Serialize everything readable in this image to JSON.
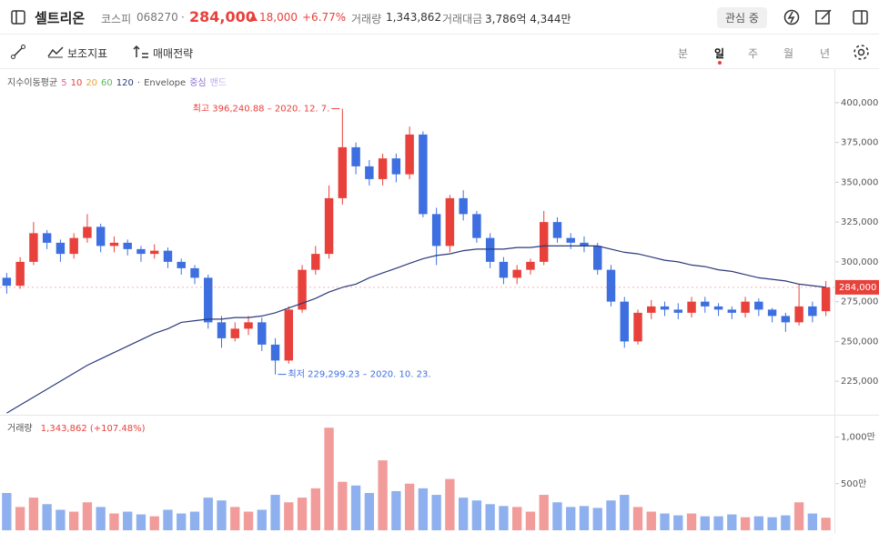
{
  "header": {
    "name": "셀트리온",
    "market": "코스피",
    "code": "068270",
    "price": "284,000",
    "change": "18,000",
    "change_pct": "+6.77%",
    "volume_label": "거래량",
    "volume": "1,343,862",
    "amount_label": "거래대금",
    "amount": "3,786억 4,344만",
    "watch_button": "관심 중"
  },
  "toolbar": {
    "indicator": "보조지표",
    "strategy": "매매전략",
    "periods": [
      "분",
      "일",
      "주",
      "월",
      "년"
    ],
    "selected_period": 1
  },
  "chart_data": {
    "type": "candlestick",
    "legend": {
      "title": "지수이동평균",
      "items": [
        {
          "label": "5",
          "color": "#e0619c"
        },
        {
          "label": "10",
          "color": "#e8413b"
        },
        {
          "label": "20",
          "color": "#f0a030"
        },
        {
          "label": "60",
          "color": "#5cb85c"
        },
        {
          "label": "120",
          "color": "#2c3a7a"
        }
      ],
      "envelope": {
        "title": "Envelope",
        "items": [
          {
            "label": "중심",
            "color": "#8a6fd0"
          },
          {
            "label": "밴드",
            "color": "#b9a8e8"
          }
        ]
      }
    },
    "up_color": "#e8413b",
    "down_color": "#3d6fe0",
    "open": [
      290000,
      285000,
      300000,
      318000,
      312000,
      305000,
      315000,
      322000,
      310000,
      312000,
      308000,
      305000,
      307000,
      300000,
      296000,
      290000,
      262000,
      252000,
      258000,
      262000,
      248000,
      238000,
      270000,
      295000,
      305000,
      340000,
      372000,
      360000,
      352000,
      365000,
      355000,
      380000,
      330000,
      310000,
      340000,
      330000,
      315000,
      300000,
      290000,
      295000,
      300000,
      325000,
      315000,
      312000,
      310000,
      295000,
      275000,
      250000,
      268000,
      272000,
      270000,
      268000,
      275000,
      272000,
      270000,
      268000,
      275000,
      270000,
      266000,
      262000,
      272000,
      269000
    ],
    "high": [
      293000,
      303000,
      325000,
      320000,
      314000,
      318000,
      330000,
      324000,
      316000,
      314000,
      310000,
      311000,
      309000,
      302000,
      298000,
      292000,
      266000,
      262000,
      266000,
      265000,
      252000,
      272000,
      298000,
      310000,
      348000,
      396240,
      375000,
      364000,
      368000,
      368000,
      385000,
      382000,
      334000,
      342000,
      345000,
      332000,
      318000,
      303000,
      298000,
      302000,
      332000,
      328000,
      318000,
      316000,
      312000,
      298000,
      278000,
      270000,
      276000,
      275000,
      274000,
      278000,
      278000,
      274000,
      272000,
      278000,
      277000,
      271000,
      268000,
      286000,
      275000,
      288000
    ],
    "low": [
      280000,
      283000,
      298000,
      308000,
      300000,
      302000,
      312000,
      306000,
      306000,
      304000,
      300000,
      302000,
      296000,
      292000,
      286000,
      258000,
      246000,
      250000,
      254000,
      244000,
      229299,
      236000,
      268000,
      292000,
      302000,
      336000,
      355000,
      348000,
      348000,
      350000,
      352000,
      328000,
      298000,
      306000,
      326000,
      312000,
      296000,
      286000,
      286000,
      292000,
      298000,
      312000,
      308000,
      306000,
      292000,
      272000,
      246000,
      248000,
      264000,
      266000,
      264000,
      265000,
      268000,
      266000,
      264000,
      265000,
      266000,
      262000,
      256000,
      260000,
      262000,
      266000
    ],
    "close": [
      285000,
      300000,
      318000,
      312000,
      305000,
      315000,
      322000,
      310000,
      312000,
      308000,
      305000,
      307000,
      300000,
      296000,
      290000,
      262000,
      252000,
      258000,
      262000,
      248000,
      238000,
      270000,
      295000,
      305000,
      340000,
      372000,
      360000,
      352000,
      365000,
      355000,
      380000,
      330000,
      310000,
      340000,
      330000,
      315000,
      300000,
      290000,
      295000,
      300000,
      325000,
      315000,
      312000,
      310000,
      295000,
      275000,
      250000,
      268000,
      272000,
      270000,
      268000,
      275000,
      272000,
      270000,
      268000,
      275000,
      270000,
      266000,
      262000,
      272000,
      266000,
      284000
    ],
    "series": [
      {
        "name": "120",
        "color": "#2c3a7a",
        "values": [
          205000,
          210000,
          215000,
          220000,
          225000,
          230000,
          235000,
          239000,
          243000,
          247000,
          251000,
          255000,
          258000,
          262000,
          263000,
          264000,
          264000,
          265000,
          265000,
          266000,
          268000,
          271000,
          274000,
          277000,
          281000,
          284000,
          286000,
          290000,
          293000,
          296000,
          299000,
          302000,
          304000,
          305000,
          307000,
          308000,
          308000,
          308000,
          309000,
          309000,
          310000,
          310000,
          310000,
          310000,
          310000,
          308000,
          306000,
          305000,
          303000,
          301000,
          300000,
          298000,
          297000,
          295000,
          294000,
          292000,
          290000,
          289000,
          288000,
          286000,
          285000,
          284000
        ]
      }
    ],
    "ylim": [
      204500,
      418800
    ],
    "yticks": [
      {
        "value": 225000,
        "label": "225,000"
      },
      {
        "value": 250000,
        "label": "250,000"
      },
      {
        "value": 275000,
        "label": "275,000"
      },
      {
        "value": 300000,
        "label": "300,000"
      },
      {
        "value": 325000,
        "label": "325,000"
      },
      {
        "value": 350000,
        "label": "350,000"
      },
      {
        "value": 375000,
        "label": "375,000"
      },
      {
        "value": 400000,
        "label": "400,000"
      }
    ],
    "grid": false,
    "annotations": {
      "high": "최고 396,240.88 – 2020. 12. 7.",
      "low": "최저 229,299.23 – 2020. 10. 23."
    },
    "volume_panel": {
      "title": "거래량",
      "summary": "1,343,862 (+107.48%)",
      "values": [
        4000000,
        2500000,
        3500000,
        2800000,
        2200000,
        2000000,
        3000000,
        2500000,
        1800000,
        2000000,
        1700000,
        1500000,
        2200000,
        1800000,
        2000000,
        3500000,
        3200000,
        2500000,
        2000000,
        2200000,
        3800000,
        3000000,
        3500000,
        4500000,
        11000000,
        5200000,
        4800000,
        4000000,
        7500000,
        4200000,
        5000000,
        4500000,
        3800000,
        5500000,
        3500000,
        3200000,
        2800000,
        2600000,
        2500000,
        2000000,
        3800000,
        3000000,
        2500000,
        2600000,
        2400000,
        3200000,
        3800000,
        2500000,
        2000000,
        1800000,
        1600000,
        1800000,
        1500000,
        1500000,
        1700000,
        1400000,
        1500000,
        1400000,
        1600000,
        3000000,
        1800000,
        1343862
      ],
      "up_color": "#f19c9a",
      "down_color": "#8fb0ef",
      "ylim": [
        0,
        12000000
      ],
      "yticks": [
        {
          "value": 5000000,
          "label": "500만"
        },
        {
          "value": 10000000,
          "label": "1,000만"
        }
      ]
    }
  }
}
